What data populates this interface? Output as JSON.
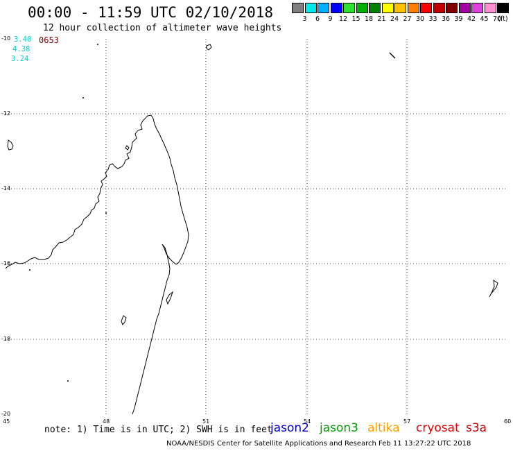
{
  "header": {
    "title": "00:00 - 11:59 UTC 02/10/2018",
    "subtitle": "12 hour collection of altimeter wave heights"
  },
  "legend": {
    "unit": "(ft)",
    "items": [
      {
        "label": "3",
        "color": "#808080"
      },
      {
        "label": "6",
        "color": "#00e8e8"
      },
      {
        "label": "9",
        "color": "#00b0ff"
      },
      {
        "label": "12",
        "color": "#0000ff"
      },
      {
        "label": "15",
        "color": "#30e030"
      },
      {
        "label": "18",
        "color": "#00b000"
      },
      {
        "label": "21",
        "color": "#008000"
      },
      {
        "label": "24",
        "color": "#ffff00"
      },
      {
        "label": "27",
        "color": "#ffc000"
      },
      {
        "label": "30",
        "color": "#ff8000"
      },
      {
        "label": "33",
        "color": "#ff0000"
      },
      {
        "label": "36",
        "color": "#c00000"
      },
      {
        "label": "39",
        "color": "#800000"
      },
      {
        "label": "42",
        "color": "#a000a0"
      },
      {
        "label": "45",
        "color": "#e040e0"
      },
      {
        "label": "70",
        "color": "#ff90d0"
      },
      {
        "label": "",
        "color": "#000000"
      }
    ]
  },
  "track": {
    "values": [
      "3.40",
      "4.38",
      "3.24"
    ],
    "time": "0653",
    "color": "#00d0d0",
    "time_color": "#7a0000"
  },
  "axes": {
    "lat_labels": [
      "-10",
      "-12",
      "-14",
      "-16",
      "-18",
      "-20"
    ],
    "lon_labels": [
      "45",
      "48",
      "51",
      "54",
      "57",
      "60"
    ]
  },
  "footer": {
    "note": "note: 1) Time is in UTC; 2) SWH is in feet",
    "satellites": [
      {
        "name": "jason2",
        "color": "#0000c8"
      },
      {
        "name": "jason3",
        "color": "#00a000"
      },
      {
        "name": "altika",
        "color": "#ffa000"
      },
      {
        "name": "cryosat",
        "color": "#e00000"
      },
      {
        "name": "s3a",
        "color": "#c00000"
      }
    ],
    "credit": "NOAA/NESDIS Center for Satellite Applications and Research   Feb 11 13:27:22 UTC 2018"
  }
}
